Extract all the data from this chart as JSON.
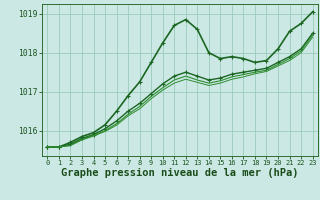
{
  "title": "Graphe pression niveau de la mer (hPa)",
  "bg_color": "#cce8e4",
  "grid_color": "#99ccbb",
  "xlim": [
    -0.5,
    23.5
  ],
  "ylim": [
    1015.35,
    1019.25
  ],
  "yticks": [
    1016,
    1017,
    1018,
    1019
  ],
  "xticks": [
    0,
    1,
    2,
    3,
    4,
    5,
    6,
    7,
    8,
    9,
    10,
    11,
    12,
    13,
    14,
    15,
    16,
    17,
    18,
    19,
    20,
    21,
    22,
    23
  ],
  "series": [
    {
      "x": [
        0,
        1,
        2,
        3,
        4,
        5,
        6,
        7,
        8,
        9,
        10,
        11,
        12,
        13,
        14,
        15,
        16,
        17,
        18,
        19,
        20,
        21,
        22,
        23
      ],
      "y": [
        1015.58,
        1015.58,
        1015.7,
        1015.85,
        1015.95,
        1016.15,
        1016.5,
        1016.9,
        1017.25,
        1017.75,
        1018.25,
        1018.7,
        1018.85,
        1018.6,
        1018.0,
        1017.85,
        1017.9,
        1017.85,
        1017.75,
        1017.8,
        1018.1,
        1018.55,
        1018.75,
        1019.05
      ],
      "color": "#1a6622",
      "lw": 1.2,
      "marker": "+"
    },
    {
      "x": [
        0,
        1,
        2,
        3,
        4,
        5,
        6,
        7,
        8,
        9,
        10,
        11,
        12,
        13,
        14,
        15,
        16,
        17,
        18,
        19,
        20,
        21,
        22,
        23
      ],
      "y": [
        1015.58,
        1015.58,
        1015.65,
        1015.8,
        1015.9,
        1016.05,
        1016.25,
        1016.5,
        1016.7,
        1016.95,
        1017.2,
        1017.4,
        1017.5,
        1017.4,
        1017.3,
        1017.35,
        1017.45,
        1017.5,
        1017.55,
        1017.6,
        1017.75,
        1017.9,
        1018.1,
        1018.5
      ],
      "color": "#1a6622",
      "lw": 1.0,
      "marker": "+"
    },
    {
      "x": [
        0,
        1,
        2,
        3,
        4,
        5,
        6,
        7,
        8,
        9,
        10,
        11,
        12,
        13,
        14,
        15,
        16,
        17,
        18,
        19,
        20,
        21,
        22,
        23
      ],
      "y": [
        1015.58,
        1015.58,
        1015.62,
        1015.78,
        1015.88,
        1016.0,
        1016.18,
        1016.42,
        1016.62,
        1016.88,
        1017.1,
        1017.3,
        1017.4,
        1017.3,
        1017.22,
        1017.28,
        1017.38,
        1017.44,
        1017.5,
        1017.55,
        1017.7,
        1017.85,
        1018.05,
        1018.45
      ],
      "color": "#2d8c30",
      "lw": 0.8,
      "marker": null
    },
    {
      "x": [
        0,
        1,
        2,
        3,
        4,
        5,
        6,
        7,
        8,
        9,
        10,
        11,
        12,
        13,
        14,
        15,
        16,
        17,
        18,
        19,
        20,
        21,
        22,
        23
      ],
      "y": [
        1015.58,
        1015.58,
        1015.62,
        1015.76,
        1015.86,
        1015.98,
        1016.14,
        1016.38,
        1016.56,
        1016.82,
        1017.04,
        1017.22,
        1017.32,
        1017.24,
        1017.16,
        1017.22,
        1017.32,
        1017.38,
        1017.46,
        1017.52,
        1017.66,
        1017.8,
        1018.0,
        1018.4
      ],
      "color": "#2d8c30",
      "lw": 0.7,
      "marker": null
    }
  ],
  "spine_color": "#2d6e30",
  "tick_color": "#1a5520",
  "label_color": "#1a4d1a",
  "title_fontsize": 7.5,
  "tick_fontsize": 5.8,
  "xtick_fontsize": 5.0
}
